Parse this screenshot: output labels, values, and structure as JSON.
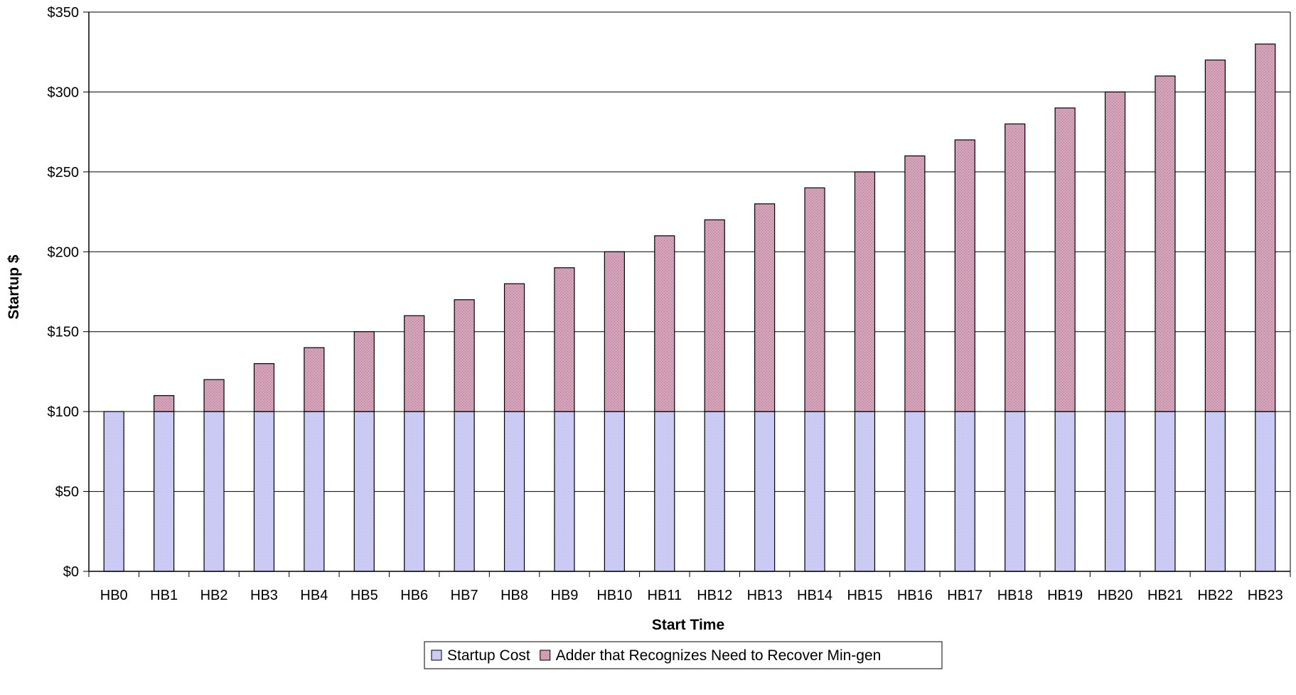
{
  "chart_data": {
    "type": "bar",
    "stacked": true,
    "title": "",
    "xlabel": "Start Time",
    "ylabel": "Startup $",
    "ylim": [
      0,
      350
    ],
    "y_tick_step": 50,
    "y_tick_labels": [
      "$0",
      "$50",
      "$100",
      "$150",
      "$200",
      "$250",
      "$300",
      "$350"
    ],
    "grid": true,
    "legend_position": "bottom-center",
    "categories": [
      "HB0",
      "HB1",
      "HB2",
      "HB3",
      "HB4",
      "HB5",
      "HB6",
      "HB7",
      "HB8",
      "HB9",
      "HB10",
      "HB11",
      "HB12",
      "HB13",
      "HB14",
      "HB15",
      "HB16",
      "HB17",
      "HB18",
      "HB19",
      "HB20",
      "HB21",
      "HB22",
      "HB23"
    ],
    "series": [
      {
        "name": "Startup Cost",
        "color": "#c8c8f5",
        "values": [
          100,
          100,
          100,
          100,
          100,
          100,
          100,
          100,
          100,
          100,
          100,
          100,
          100,
          100,
          100,
          100,
          100,
          100,
          100,
          100,
          100,
          100,
          100,
          100
        ]
      },
      {
        "name": "Adder that Recognizes Need to Recover Min-gen",
        "color": "#cc9ab0",
        "values": [
          0,
          10,
          20,
          30,
          40,
          50,
          60,
          70,
          80,
          90,
          100,
          110,
          120,
          130,
          140,
          150,
          160,
          170,
          180,
          190,
          200,
          210,
          220,
          230
        ]
      }
    ]
  }
}
